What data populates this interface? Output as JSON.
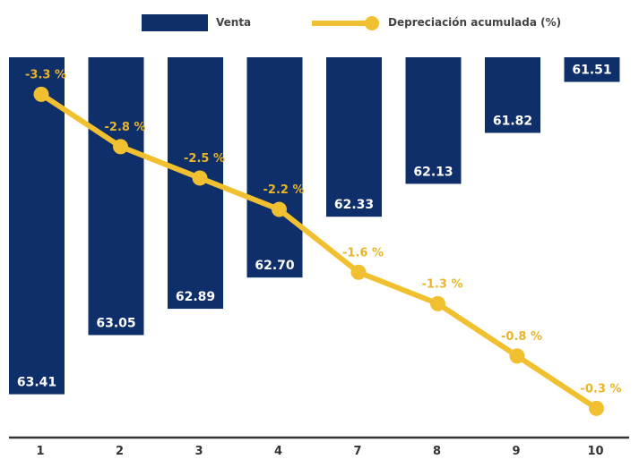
{
  "chart_data": {
    "type": "bar+line",
    "categories": [
      "1",
      "2",
      "3",
      "4",
      "7",
      "8",
      "9",
      "10"
    ],
    "series": [
      {
        "name": "Venta",
        "type": "bar",
        "values": [
          63.41,
          63.05,
          62.89,
          62.7,
          62.33,
          62.13,
          61.82,
          61.51
        ],
        "labels": [
          "63.41",
          "63.05",
          "62.89",
          "62.70",
          "62.33",
          "62.13",
          "61.82",
          "61.51"
        ],
        "color": "#0f2f6b",
        "orientation": "hanging-from-top"
      },
      {
        "name": "Depreciación acumulada (%)",
        "type": "line",
        "values": [
          -3.3,
          -2.8,
          -2.5,
          -2.2,
          -1.6,
          -1.3,
          -0.8,
          -0.3
        ],
        "labels": [
          "-3.3 %",
          "-2.8 %",
          "-2.5 %",
          "-2.2 %",
          "-1.6 %",
          "-1.3 %",
          "-0.8 %",
          "-0.3 %"
        ],
        "color": "#f0c030"
      }
    ],
    "bar_ylim": [
      61.36,
      63.6
    ],
    "line_ylim": [
      -3.58,
      0.0
    ],
    "legend_placement": "top",
    "grid": false,
    "title": "",
    "xlabel": "",
    "ylabel": ""
  },
  "colors": {
    "bar": "#0f2f6b",
    "line": "#f0c030",
    "line_label": "#e8b52a",
    "axis": "#333333"
  }
}
